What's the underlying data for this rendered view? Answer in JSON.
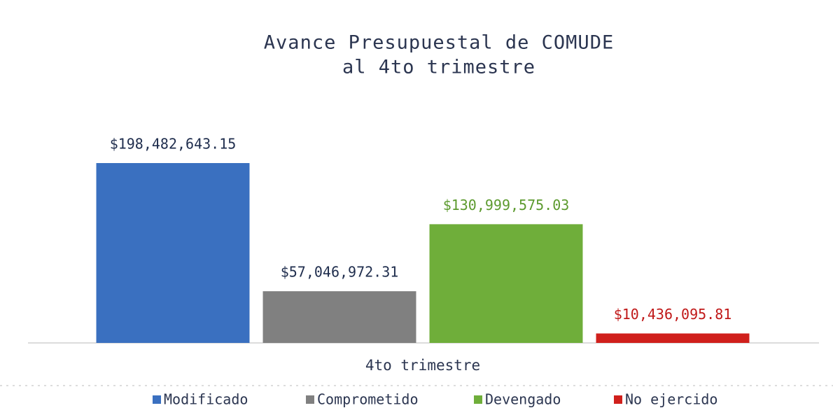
{
  "chart_data": {
    "type": "bar",
    "title": [
      "Avance Presupuestal de COMUDE",
      "al 4to trimestre"
    ],
    "categories": [
      "4to trimestre"
    ],
    "series": [
      {
        "name": "Modificado",
        "color": "#3a70c0",
        "label_color": "#1f2d4d",
        "values": [
          198482643.15
        ],
        "value_labels": [
          "$198,482,643.15"
        ]
      },
      {
        "name": "Comprometido",
        "color": "#808080",
        "label_color": "#1f2d4d",
        "values": [
          57046972.31
        ],
        "value_labels": [
          "$57,046,972.31"
        ]
      },
      {
        "name": "Devengado",
        "color": "#6fae3a",
        "label_color": "#5c9a2e",
        "values": [
          130999575.03
        ],
        "value_labels": [
          "$130,999,575.03"
        ]
      },
      {
        "name": "No ejercido",
        "color": "#d0201c",
        "label_color": "#c01818",
        "values": [
          10436095.81
        ],
        "value_labels": [
          "$10,436,095.81"
        ]
      }
    ],
    "legend": "bottom"
  }
}
